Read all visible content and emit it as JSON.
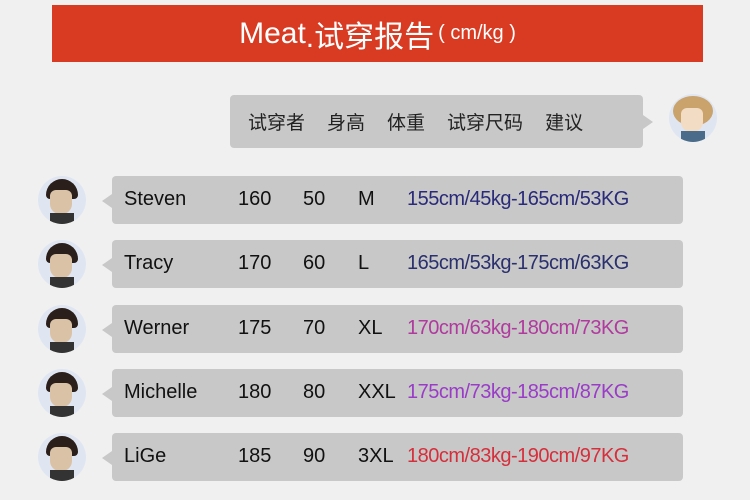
{
  "title": {
    "brand": "Meat",
    "text": ".试穿报告",
    "unit": "( cm/kg )"
  },
  "header": [
    "试穿者",
    "身高",
    "体重",
    "试穿尺码",
    "建议"
  ],
  "rows": [
    {
      "name": "Steven",
      "height": "160",
      "weight": "50",
      "size": "M",
      "advice": "155cm/45kg-165cm/53KG",
      "color": "#2a2a7a"
    },
    {
      "name": "Tracy",
      "height": "170",
      "weight": "60",
      "size": "L",
      "advice": "165cm/53kg-175cm/63KG",
      "color": "#2a2f6e"
    },
    {
      "name": "Werner",
      "height": "175",
      "weight": "70",
      "size": "XL",
      "advice": "170cm/63kg-180cm/73KG",
      "color": "#b03a9e"
    },
    {
      "name": "Michelle",
      "height": "180",
      "weight": "80",
      "size": "XXL",
      "advice": "175cm/73kg-185cm/87KG",
      "color": "#9a3cc8"
    },
    {
      "name": "LiGe",
      "height": "185",
      "weight": "90",
      "size": "3XL",
      "advice": "180cm/83kg-190cm/97KG",
      "color": "#d62f3c"
    }
  ],
  "colors": {
    "banner": "#d83b22",
    "bubble": "#c8c8c8"
  }
}
